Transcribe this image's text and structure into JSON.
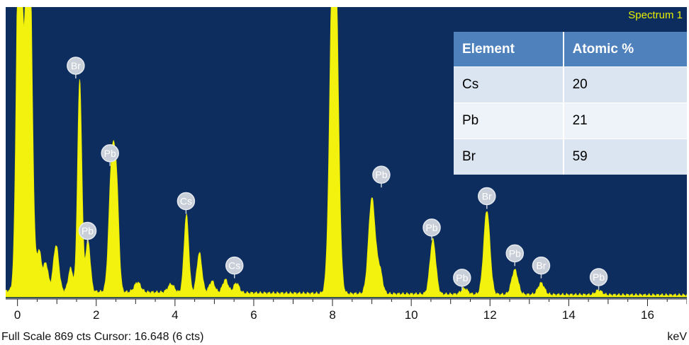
{
  "chart_data": {
    "type": "line",
    "title": "Spectrum 1",
    "xlabel": "keV",
    "xlim": [
      -0.3,
      17.0
    ],
    "ylim": [
      0,
      869
    ],
    "x_ticks": [
      0,
      2,
      4,
      6,
      8,
      10,
      12,
      14,
      16
    ],
    "status": "Full Scale 869 cts Cursor: 16.648  (6 cts)",
    "background_counts": 18,
    "peaks": [
      {
        "x": 0.05,
        "y": 1300,
        "w": 0.07
      },
      {
        "x": 0.28,
        "y": 1300,
        "w": 0.08
      },
      {
        "x": 0.55,
        "y": 120,
        "w": 0.06
      },
      {
        "x": 0.72,
        "y": 85,
        "w": 0.06
      },
      {
        "x": 0.98,
        "y": 140,
        "w": 0.07
      },
      {
        "x": 1.35,
        "y": 70,
        "w": 0.06
      },
      {
        "x": 1.58,
        "y": 640,
        "w": 0.055
      },
      {
        "x": 1.79,
        "y": 155,
        "w": 0.06
      },
      {
        "x": 2.4,
        "y": 400,
        "w": 0.075
      },
      {
        "x": 2.52,
        "y": 260,
        "w": 0.06
      },
      {
        "x": 3.05,
        "y": 30,
        "w": 0.08
      },
      {
        "x": 3.9,
        "y": 25,
        "w": 0.08
      },
      {
        "x": 4.29,
        "y": 235,
        "w": 0.06
      },
      {
        "x": 4.62,
        "y": 120,
        "w": 0.065
      },
      {
        "x": 4.94,
        "y": 35,
        "w": 0.07
      },
      {
        "x": 5.28,
        "y": 40,
        "w": 0.07
      },
      {
        "x": 5.56,
        "y": 30,
        "w": 0.07
      },
      {
        "x": 8.04,
        "y": 1300,
        "w": 0.09
      },
      {
        "x": 9.0,
        "y": 290,
        "w": 0.085
      },
      {
        "x": 9.2,
        "y": 70,
        "w": 0.07
      },
      {
        "x": 10.55,
        "y": 165,
        "w": 0.075
      },
      {
        "x": 11.35,
        "y": 18,
        "w": 0.08
      },
      {
        "x": 11.92,
        "y": 255,
        "w": 0.08
      },
      {
        "x": 12.63,
        "y": 75,
        "w": 0.08
      },
      {
        "x": 13.3,
        "y": 35,
        "w": 0.08
      },
      {
        "x": 14.76,
        "y": 14,
        "w": 0.08
      }
    ],
    "annotations": [
      {
        "label": "Br",
        "x": 1.48,
        "y": 700
      },
      {
        "label": "Pb",
        "x": 2.35,
        "y": 435
      },
      {
        "label": "Pb",
        "x": 1.78,
        "y": 200
      },
      {
        "label": "Cs",
        "x": 4.28,
        "y": 290
      },
      {
        "label": "Cs",
        "x": 5.51,
        "y": 95
      },
      {
        "label": "Pb",
        "x": 9.24,
        "y": 370
      },
      {
        "label": "Pb",
        "x": 10.52,
        "y": 210
      },
      {
        "label": "Pb",
        "x": 11.29,
        "y": 58
      },
      {
        "label": "Br",
        "x": 11.92,
        "y": 305
      },
      {
        "label": "Pb",
        "x": 12.63,
        "y": 132
      },
      {
        "label": "Br",
        "x": 13.3,
        "y": 95
      },
      {
        "label": "Pb",
        "x": 14.76,
        "y": 60
      }
    ]
  },
  "table": {
    "headers": [
      "Element",
      "Atomic %"
    ],
    "rows": [
      [
        "Cs",
        "20"
      ],
      [
        "Pb",
        "21"
      ],
      [
        "Br",
        "59"
      ]
    ]
  },
  "colors": {
    "background": "#0d2d5e",
    "spectrum_fill": "#f2f20e",
    "spectrum_edge": "#e8e800",
    "title_text": "#e8f000",
    "badge_fill": "#c9cfd8",
    "table_header": "#4f81bd",
    "table_row_odd": "#dbe5f1",
    "table_row_even": "#eef3f9"
  }
}
